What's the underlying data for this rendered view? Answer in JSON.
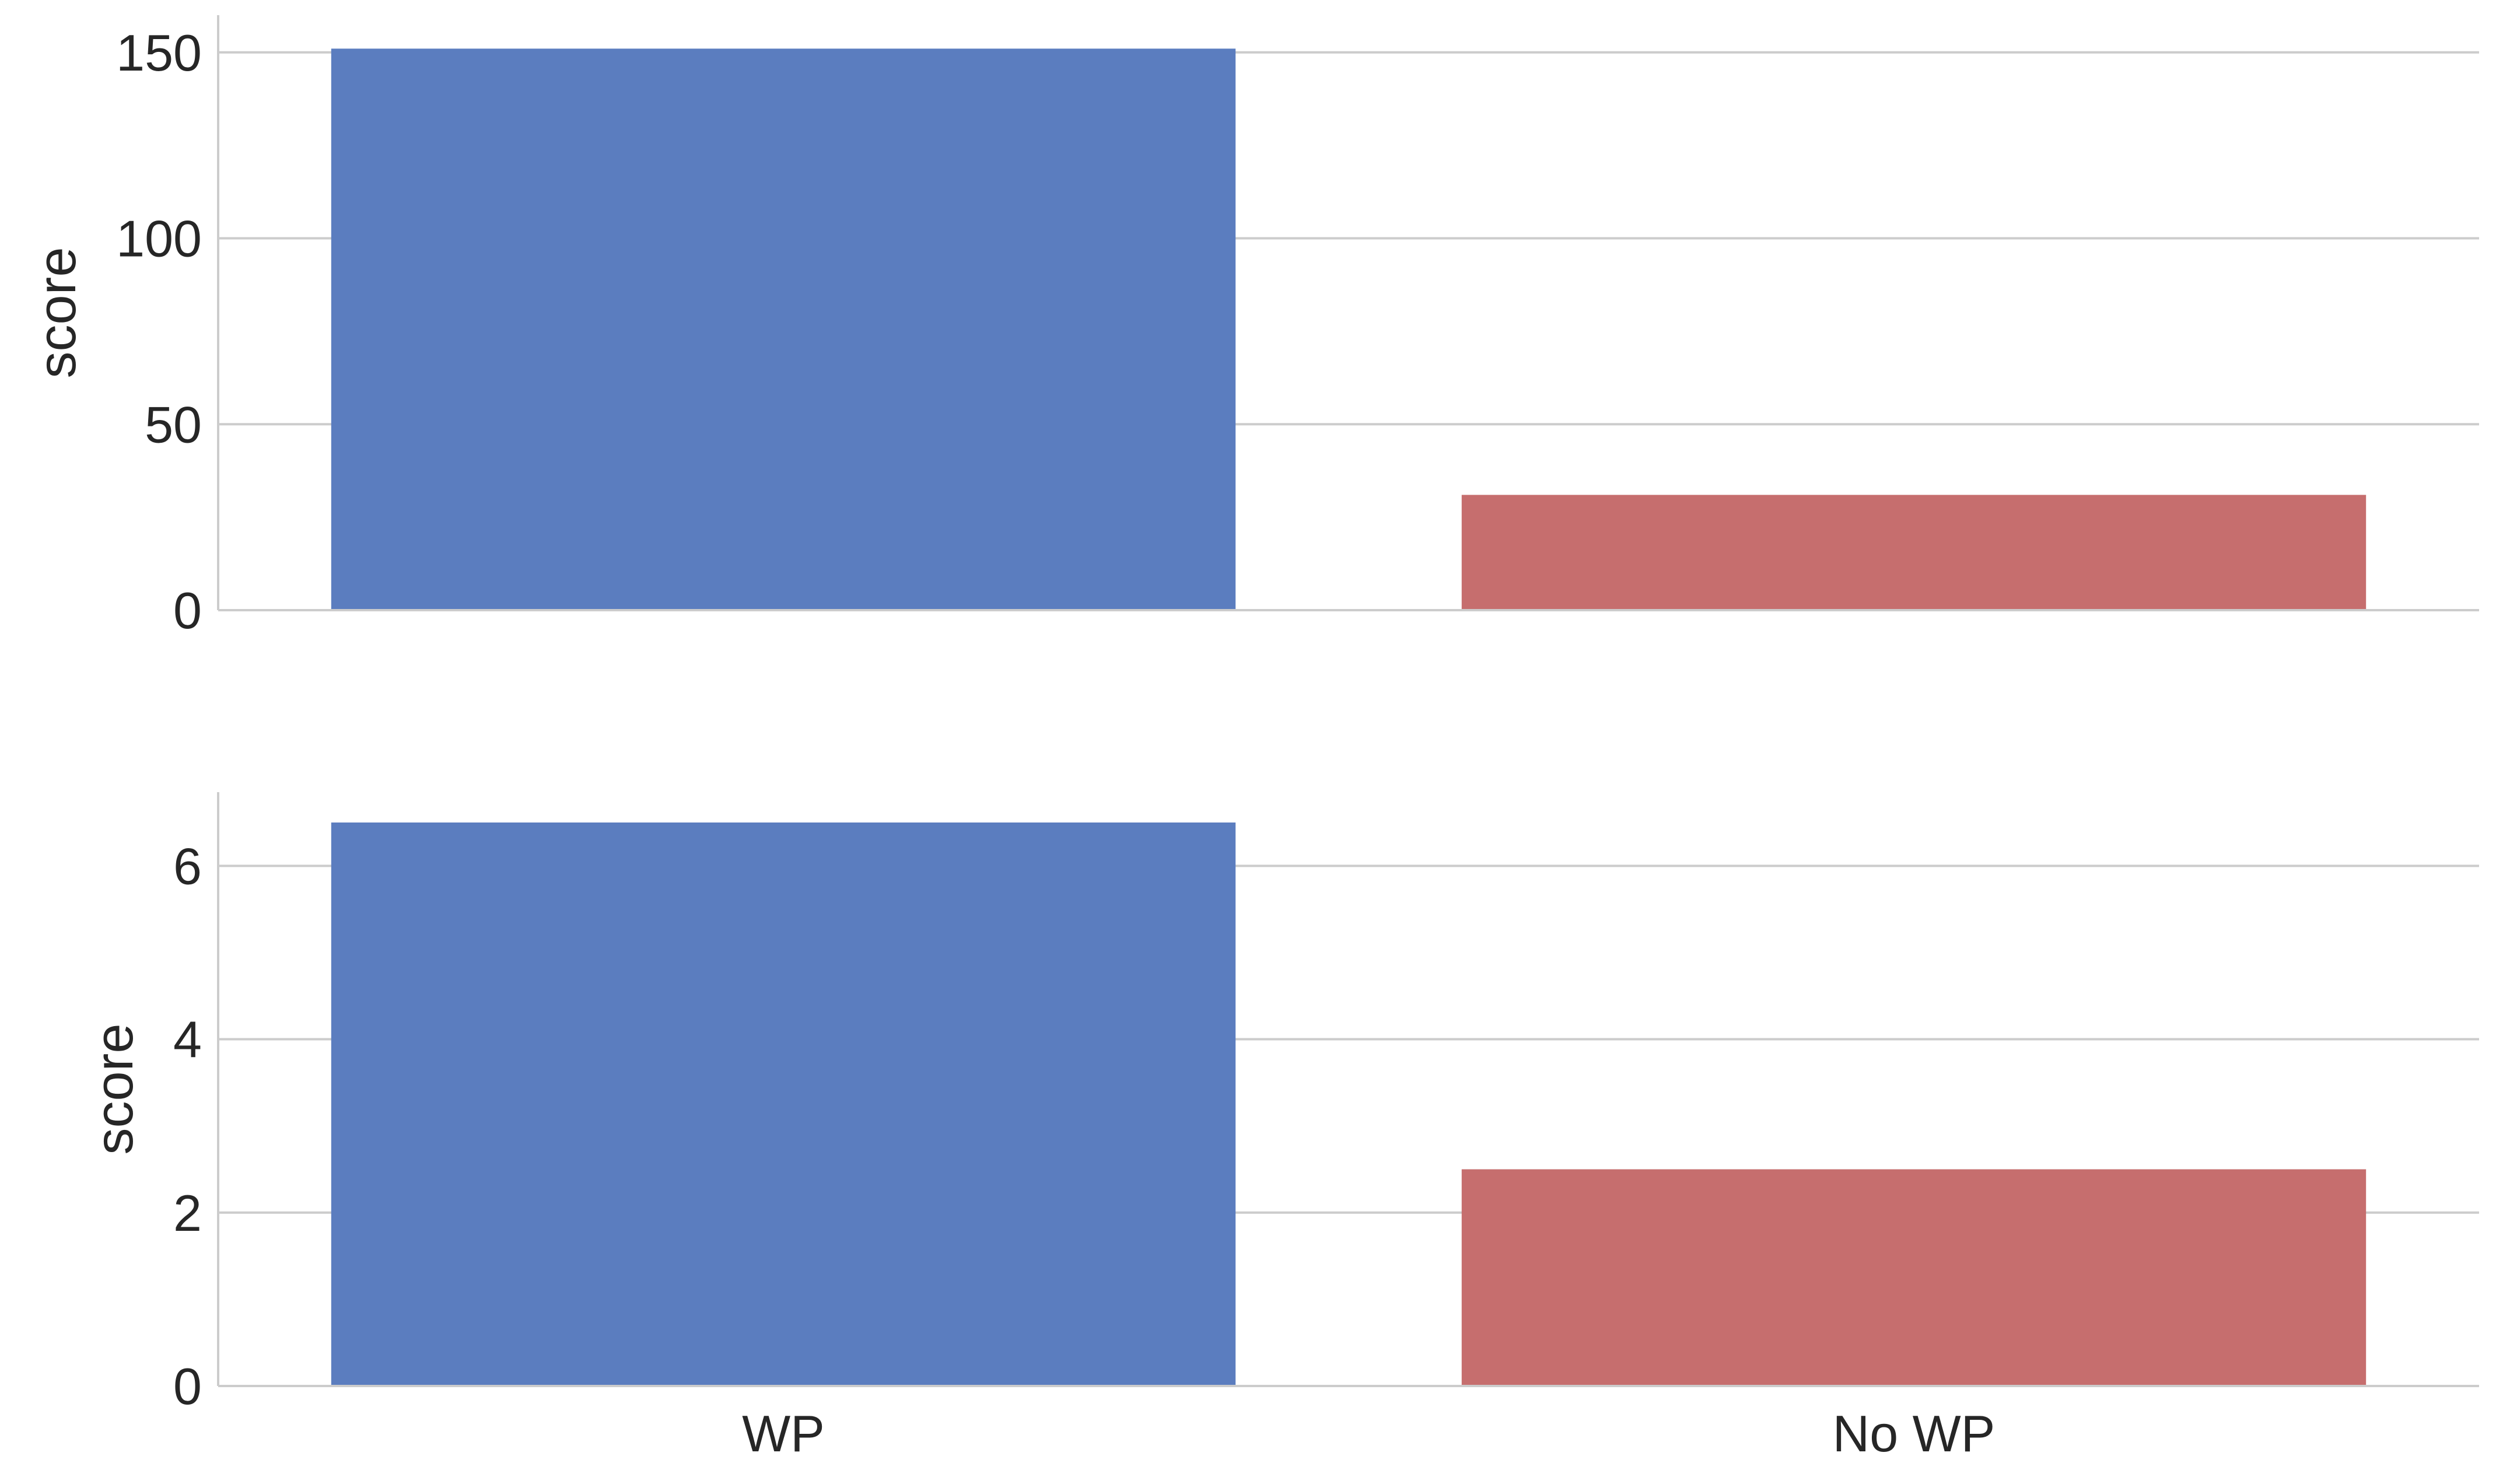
{
  "chart_data": [
    {
      "type": "bar",
      "categories": [
        "WP",
        "No WP"
      ],
      "values": [
        151,
        31
      ],
      "ylabel": "score",
      "xlabel": "",
      "ylim": [
        0,
        160
      ],
      "yticks": [
        0,
        50,
        100,
        150
      ],
      "show_category_labels": false,
      "grid": true,
      "colors": [
        "#5b7dbf",
        "#c66e6e"
      ]
    },
    {
      "type": "bar",
      "categories": [
        "WP",
        "No WP"
      ],
      "values": [
        6.5,
        2.5
      ],
      "ylabel": "score",
      "xlabel": "",
      "ylim": [
        0,
        6.85
      ],
      "yticks": [
        0,
        2,
        4,
        6
      ],
      "show_category_labels": true,
      "grid": true,
      "colors": [
        "#5b7dbf",
        "#c66e6e"
      ]
    }
  ]
}
